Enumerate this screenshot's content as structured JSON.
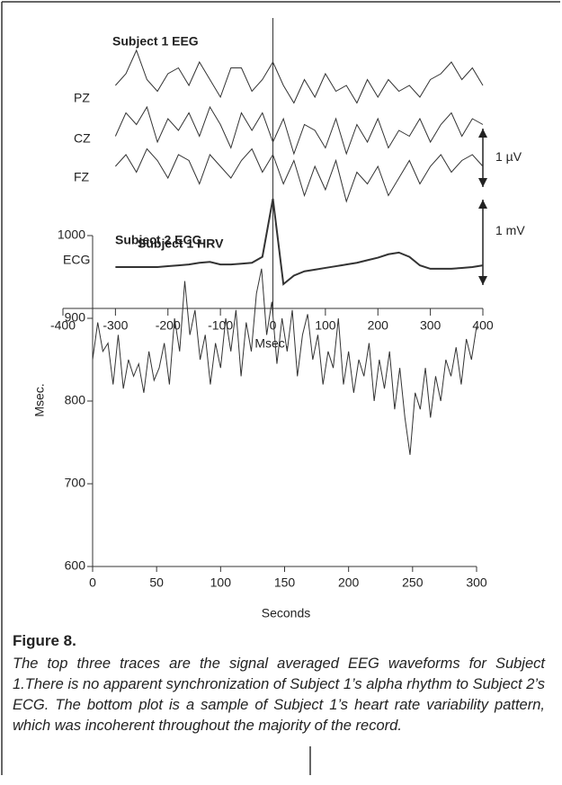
{
  "chart_data": [
    {
      "type": "trace",
      "title": "Subject 1 EEG",
      "annotation": "Subject 2 ECG",
      "xlabel": "Msec.",
      "xlim": [
        -400,
        400
      ],
      "xticks": [
        -400,
        -300,
        -200,
        -100,
        0,
        100,
        200,
        300,
        400
      ],
      "color": "#333333",
      "x": [
        -300,
        -280,
        -260,
        -240,
        -220,
        -200,
        -180,
        -160,
        -140,
        -120,
        -100,
        -80,
        -60,
        -40,
        -20,
        0,
        20,
        40,
        60,
        80,
        100,
        120,
        140,
        160,
        180,
        200,
        220,
        240,
        260,
        280,
        300,
        320,
        340,
        360,
        380,
        400
      ],
      "scale_bars": [
        {
          "label": "1 µV",
          "value": 1
        },
        {
          "label": "1 mV",
          "value": 1
        }
      ],
      "series": [
        {
          "name": "PZ",
          "scale_bar": 0,
          "values": [
            0,
            0.2,
            0.6,
            0.1,
            -0.1,
            0.2,
            0.3,
            0,
            0.4,
            0.1,
            -0.2,
            0.3,
            0.3,
            -0.1,
            0.1,
            0.4,
            0,
            -0.3,
            0.1,
            -0.2,
            0.2,
            -0.1,
            0,
            -0.3,
            0.1,
            -0.2,
            0.1,
            -0.1,
            0,
            -0.2,
            0.1,
            0.2,
            0.4,
            0.1,
            0.3,
            0
          ]
        },
        {
          "name": "CZ",
          "scale_bar": 0,
          "values": [
            -0.1,
            0.3,
            0.1,
            0.4,
            -0.2,
            0.2,
            0,
            0.3,
            -0.1,
            0.4,
            0.1,
            -0.3,
            0.3,
            0,
            0.3,
            -0.2,
            0.2,
            -0.4,
            0.1,
            0,
            -0.3,
            0.2,
            -0.4,
            0.1,
            -0.2,
            0.2,
            -0.3,
            0,
            -0.1,
            0.2,
            -0.2,
            0.1,
            0.3,
            -0.1,
            0.2,
            0.1
          ]
        },
        {
          "name": "FZ",
          "scale_bar": 0,
          "values": [
            0,
            0.2,
            -0.1,
            0.3,
            0.1,
            -0.2,
            0.2,
            0.1,
            -0.3,
            0.2,
            0,
            -0.2,
            0.1,
            0.3,
            -0.1,
            0.2,
            -0.3,
            0.1,
            -0.5,
            0,
            -0.4,
            0.1,
            -0.6,
            -0.1,
            -0.3,
            0,
            -0.5,
            -0.2,
            0.1,
            -0.3,
            0,
            0.2,
            -0.1,
            0.1,
            0.2,
            0
          ]
        },
        {
          "name": "ECG",
          "scale_bar": 1,
          "values": [
            0,
            0,
            0,
            0,
            0,
            0.01,
            0.02,
            0.03,
            0.05,
            0.06,
            0.03,
            0.03,
            0.04,
            0.05,
            0.12,
            0.8,
            -0.2,
            -0.1,
            -0.05,
            -0.03,
            -0.01,
            0.01,
            0.03,
            0.05,
            0.08,
            0.11,
            0.15,
            0.17,
            0.12,
            0.02,
            -0.02,
            -0.02,
            -0.02,
            -0.01,
            0,
            0.02
          ]
        }
      ]
    },
    {
      "type": "line",
      "title": "Subject 1 HRV",
      "xlabel": "Seconds",
      "ylabel": "Msec.",
      "color": "#333333",
      "xlim": [
        0,
        300
      ],
      "ylim": [
        600,
        1000
      ],
      "xticks": [
        0,
        50,
        100,
        150,
        200,
        250,
        300
      ],
      "yticks": [
        600,
        700,
        800,
        900,
        1000
      ],
      "x": [
        0,
        4,
        8,
        12,
        16,
        20,
        24,
        28,
        32,
        36,
        40,
        44,
        48,
        52,
        56,
        60,
        64,
        68,
        72,
        76,
        80,
        84,
        88,
        92,
        96,
        100,
        104,
        108,
        112,
        116,
        120,
        124,
        128,
        132,
        136,
        140,
        144,
        148,
        152,
        156,
        160,
        164,
        168,
        172,
        176,
        180,
        184,
        188,
        192,
        196,
        200,
        204,
        208,
        212,
        216,
        220,
        224,
        228,
        232,
        236,
        240,
        244,
        248,
        252,
        256,
        260,
        264,
        268,
        272,
        276,
        280,
        284,
        288,
        292,
        296,
        300
      ],
      "values": [
        850,
        895,
        860,
        870,
        820,
        880,
        815,
        850,
        830,
        845,
        810,
        860,
        825,
        840,
        870,
        820,
        900,
        860,
        945,
        880,
        910,
        850,
        880,
        820,
        870,
        840,
        900,
        860,
        910,
        830,
        895,
        860,
        930,
        960,
        880,
        920,
        845,
        900,
        860,
        910,
        830,
        880,
        905,
        850,
        880,
        820,
        860,
        840,
        900,
        820,
        860,
        810,
        850,
        830,
        870,
        800,
        850,
        815,
        860,
        790,
        840,
        780,
        735,
        810,
        790,
        840,
        780,
        830,
        800,
        850,
        830,
        865,
        820,
        875,
        850,
        890
      ]
    }
  ],
  "caption": {
    "label": "Figure 8.",
    "text": "The top three traces are the signal averaged EEG waveforms for Subject 1.There is no apparent synchronization of Subject 1’s alpha rhythm to Subject 2’s ECG. The bottom plot is a sample of Subject 1’s heart rate variability pattern, which was incoherent throughout the majority of the record."
  }
}
